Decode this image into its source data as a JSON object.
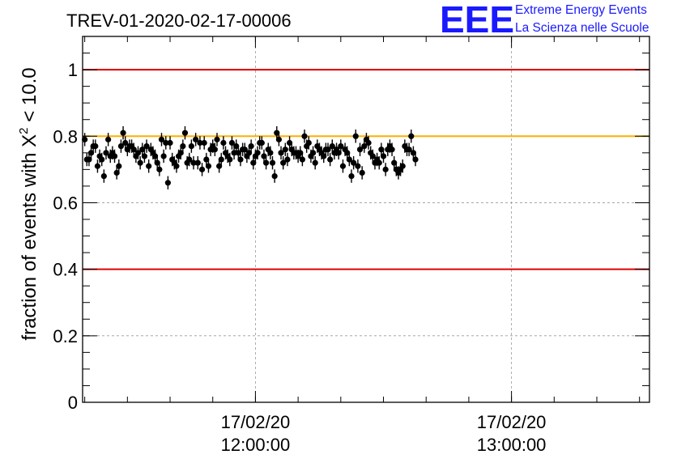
{
  "chart_data": {
    "type": "scatter",
    "title": "TREV-01-2020-02-17-00006",
    "ylabel_prefix": "fraction of events with ",
    "ylabel_symbol": "X",
    "ylabel_sup": "2",
    "ylabel_suffix": " < 10.0",
    "ylim": [
      0,
      1.1
    ],
    "y_ticks": [
      0,
      0.2,
      0.4,
      0.6,
      0.8,
      1
    ],
    "y_tick_labels": [
      "0",
      "0.2",
      "0.4",
      "0.6",
      "0.8",
      "1"
    ],
    "x_range": [
      "2020-02-17 11:19:30",
      "2020-02-17 13:32:20"
    ],
    "x_ticks": [
      {
        "time": "2020-02-17 12:00:00",
        "date_label": "17/02/20",
        "time_label": "12:00:00"
      },
      {
        "time": "2020-02-17 13:00:00",
        "date_label": "17/02/20",
        "time_label": "13:00:00"
      }
    ],
    "grid": true,
    "reference_lines": [
      {
        "y": 1.0,
        "color": "#e00000"
      },
      {
        "y": 0.8,
        "color": "#ffb000"
      },
      {
        "y": 0.4,
        "color": "#e00000"
      }
    ],
    "marker_color": "#000000",
    "error": 0.02,
    "series": [
      {
        "x_start": "2020-02-17 11:20:00",
        "x_step_seconds": 30,
        "values": [
          0.79,
          0.73,
          0.73,
          0.75,
          0.77,
          0.77,
          0.71,
          0.74,
          0.73,
          0.68,
          0.75,
          0.79,
          0.74,
          0.75,
          0.74,
          0.69,
          0.71,
          0.77,
          0.81,
          0.78,
          0.76,
          0.77,
          0.77,
          0.76,
          0.74,
          0.75,
          0.72,
          0.76,
          0.74,
          0.77,
          0.71,
          0.76,
          0.75,
          0.74,
          0.72,
          0.7,
          0.79,
          0.74,
          0.78,
          0.66,
          0.78,
          0.73,
          0.72,
          0.71,
          0.74,
          0.75,
          0.77,
          0.81,
          0.72,
          0.73,
          0.77,
          0.72,
          0.79,
          0.72,
          0.78,
          0.7,
          0.78,
          0.73,
          0.71,
          0.76,
          0.77,
          0.76,
          0.79,
          0.71,
          0.73,
          0.78,
          0.75,
          0.74,
          0.73,
          0.78,
          0.75,
          0.77,
          0.75,
          0.73,
          0.76,
          0.76,
          0.74,
          0.75,
          0.77,
          0.72,
          0.74,
          0.75,
          0.78,
          0.78,
          0.74,
          0.72,
          0.76,
          0.75,
          0.72,
          0.68,
          0.81,
          0.79,
          0.75,
          0.72,
          0.76,
          0.73,
          0.78,
          0.76,
          0.75,
          0.75,
          0.74,
          0.75,
          0.73,
          0.8,
          0.77,
          0.78,
          0.74,
          0.75,
          0.72,
          0.77,
          0.76,
          0.75,
          0.74,
          0.76,
          0.76,
          0.73,
          0.77,
          0.75,
          0.76,
          0.75,
          0.77,
          0.71,
          0.76,
          0.75,
          0.73,
          0.68,
          0.72,
          0.8,
          0.71,
          0.76,
          0.69,
          0.77,
          0.79,
          0.78,
          0.75,
          0.74,
          0.72,
          0.73,
          0.72,
          0.76,
          0.74,
          0.7,
          0.76,
          0.77,
          0.76,
          0.72,
          0.7,
          0.69,
          0.7,
          0.71,
          0.77,
          0.76,
          0.76,
          0.8,
          0.75,
          0.73
        ]
      }
    ]
  },
  "logo": {
    "mark": "EEE",
    "line1": "Extreme Energy Events",
    "line2": "La Scienza nelle Scuole",
    "color": "#1a1aff"
  }
}
